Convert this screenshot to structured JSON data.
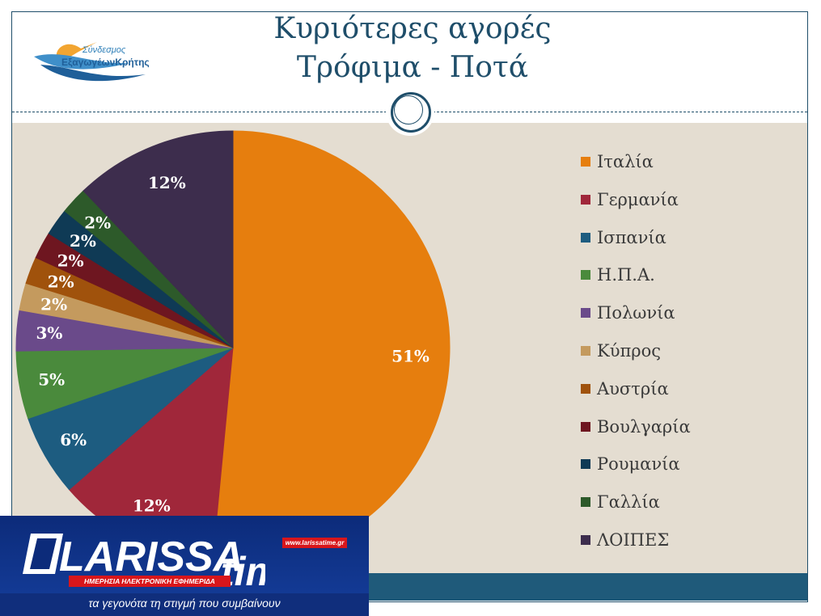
{
  "slide": {
    "title_line1": "Κυριότερες αγορές",
    "title_line2": "Τρόφιμα - Ποτά"
  },
  "logo": {
    "line1": "Σύνδεσμος",
    "line2": "ΕξαγωγέωνΚρήτης"
  },
  "watermark": {
    "brand": "LARISSA",
    "brand_suffix": "time",
    "url": "www.larissatime.gr",
    "subtitle": "ΗΜΕΡΗΣΙΑ ΗΛΕΚΤΡΟΝΙΚΗ ΕΦΗΜΕΡΙΔΑ",
    "tagline": "τα γεγονότα τη στιγμή που συμβαίνουν"
  },
  "chart_data": {
    "type": "pie",
    "categories": [
      "Ιταλία",
      "Γερμανία",
      "Ισπανία",
      "Η.Π.Α.",
      "Πολωνία",
      "Κύπρος",
      "Αυστρία",
      "Βουλγαρία",
      "Ρουμανία",
      "Γαλλία",
      "ΛΟΙΠΕΣ"
    ],
    "values": [
      51,
      12,
      6,
      5,
      3,
      2,
      2,
      2,
      2,
      2,
      12
    ],
    "data_labels": [
      "51%",
      "12%",
      "6%",
      "5%",
      "3%",
      "2%",
      "2%",
      "2%",
      "2%",
      "2%",
      "12%"
    ],
    "colors": [
      "#e67e0e",
      "#a0273a",
      "#1d5c80",
      "#4a8a3c",
      "#6a4a8a",
      "#c49a5e",
      "#a0520c",
      "#6e1620",
      "#0f3a55",
      "#2d5a2a",
      "#3d2d4d"
    ],
    "legend_position": "right"
  }
}
